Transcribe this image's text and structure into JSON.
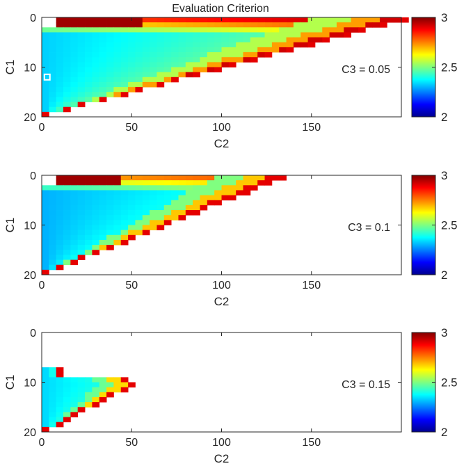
{
  "figure": {
    "title": "Evaluation Criterion"
  },
  "chart_data": [
    {
      "type": "heatmap",
      "title": "Evaluation Criterion",
      "xlabel": "C2",
      "ylabel": "C1",
      "annotation": "C3 = 0.05",
      "xlim": [
        0,
        200
      ],
      "ylim": [
        0,
        20
      ],
      "y_reversed": true,
      "xticks": [
        0,
        50,
        100,
        150
      ],
      "yticks": [
        0,
        10,
        20
      ],
      "xtick_labels": [
        "0",
        "50",
        "100",
        "150"
      ],
      "ytick_labels": [
        "0",
        "10",
        "20"
      ],
      "colormap": "jet",
      "clim": [
        2,
        3
      ],
      "colorbar_ticks": [
        2,
        2.5,
        3
      ],
      "colorbar_labels": [
        "2",
        "2.5",
        "3"
      ],
      "feasible_region": {
        "c1_min": 0,
        "c1_max": 19,
        "c2_max_at_c1_0": 200,
        "c2_max_at_c1_19": 3
      },
      "marked_point": {
        "x": 3,
        "y": 12
      },
      "grid": false
    },
    {
      "type": "heatmap",
      "title": "",
      "xlabel": "C2",
      "ylabel": "C1",
      "annotation": "C3 = 0.1",
      "xlim": [
        0,
        200
      ],
      "ylim": [
        0,
        20
      ],
      "y_reversed": true,
      "xticks": [
        0,
        50,
        100,
        150
      ],
      "yticks": [
        0,
        10,
        20
      ],
      "xtick_labels": [
        "0",
        "50",
        "100",
        "150"
      ],
      "ytick_labels": [
        "0",
        "10",
        "20"
      ],
      "colormap": "jet",
      "clim": [
        2,
        3
      ],
      "colorbar_ticks": [
        2,
        2.5,
        3
      ],
      "colorbar_labels": [
        "2",
        "2.5",
        "3"
      ],
      "feasible_region": {
        "c1_min": 0,
        "c1_max": 19,
        "c2_max_at_c1_0": 133,
        "c2_max_at_c1_19": 3
      },
      "grid": false
    },
    {
      "type": "heatmap",
      "title": "",
      "xlabel": "C2",
      "ylabel": "C1",
      "annotation": "C3 = 0.15",
      "xlim": [
        0,
        200
      ],
      "ylim": [
        0,
        20
      ],
      "y_reversed": true,
      "xticks": [
        0,
        50,
        100,
        150
      ],
      "yticks": [
        0,
        10,
        20
      ],
      "xtick_labels": [
        "0",
        "50",
        "100",
        "150"
      ],
      "ytick_labels": [
        "0",
        "10",
        "20"
      ],
      "colormap": "jet",
      "clim": [
        2,
        3
      ],
      "colorbar_ticks": [
        2,
        2.5,
        3
      ],
      "colorbar_labels": [
        "2",
        "2.5",
        "3"
      ],
      "feasible_region": {
        "c1_min": 7,
        "c1_max": 19,
        "c2_max_at_c1_10": 50,
        "c2_max_at_c1_19": 3
      },
      "grid": false
    }
  ]
}
